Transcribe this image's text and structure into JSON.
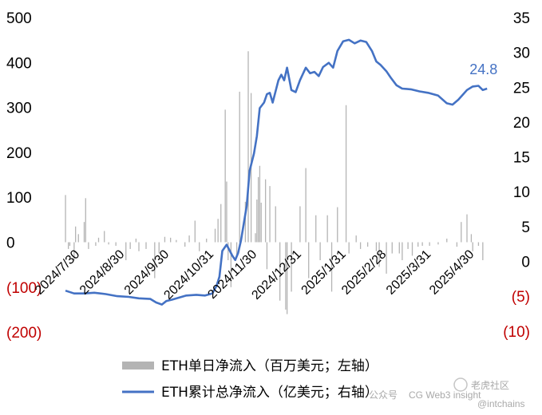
{
  "colors": {
    "bar": "#b4b4b4",
    "line": "#4472c4",
    "negative_tick": "#c00000",
    "callout": "#4472c4"
  },
  "chart_data": {
    "type": "bar+line",
    "y_left": {
      "ticks": [
        "500",
        "400",
        "300",
        "200",
        "100",
        "0",
        "(100)",
        "(200)"
      ],
      "range": [
        -200,
        500
      ]
    },
    "y_right": {
      "ticks": [
        "35",
        "30",
        "25",
        "20",
        "15",
        "10",
        "5",
        "0",
        "(5)",
        "(10)"
      ],
      "range": [
        -10,
        35
      ]
    },
    "x_labels": [
      "2024/7/30",
      "2024/8/30",
      "2024/9/30",
      "2024/10/31",
      "2024/11/30",
      "2024/12/31",
      "2025/1/31",
      "2025/2/28",
      "2025/3/31",
      "2025/4/30"
    ],
    "x_range": [
      "2024/7/23",
      "2025/5/13"
    ],
    "bars": [
      {
        "date": "2024/7/23",
        "value": 105
      },
      {
        "date": "2024/7/25",
        "value": -15
      },
      {
        "date": "2024/7/26",
        "value": -8
      },
      {
        "date": "2024/7/29",
        "value": -40
      },
      {
        "date": "2024/7/30",
        "value": 35
      },
      {
        "date": "2024/8/1",
        "value": 18
      },
      {
        "date": "2024/8/5",
        "value": 45
      },
      {
        "date": "2024/8/6",
        "value": 98
      },
      {
        "date": "2024/8/8",
        "value": -15
      },
      {
        "date": "2024/8/13",
        "value": -8
      },
      {
        "date": "2024/8/15",
        "value": 10
      },
      {
        "date": "2024/8/19",
        "value": 25
      },
      {
        "date": "2024/8/22",
        "value": -5
      },
      {
        "date": "2024/8/27",
        "value": -8
      },
      {
        "date": "2024/9/3",
        "value": -40
      },
      {
        "date": "2024/9/6",
        "value": -15
      },
      {
        "date": "2024/9/10",
        "value": 8
      },
      {
        "date": "2024/9/12",
        "value": -20
      },
      {
        "date": "2024/9/17",
        "value": -15
      },
      {
        "date": "2024/9/23",
        "value": -80
      },
      {
        "date": "2024/9/26",
        "value": -25
      },
      {
        "date": "2024/9/30",
        "value": 12
      },
      {
        "date": "2024/10/4",
        "value": 10
      },
      {
        "date": "2024/10/8",
        "value": 5
      },
      {
        "date": "2024/10/14",
        "value": -10
      },
      {
        "date": "2024/10/17",
        "value": 15
      },
      {
        "date": "2024/10/21",
        "value": 48
      },
      {
        "date": "2024/10/24",
        "value": -20
      },
      {
        "date": "2024/10/29",
        "value": 8
      },
      {
        "date": "2024/11/4",
        "value": 30
      },
      {
        "date": "2024/11/6",
        "value": 52
      },
      {
        "date": "2024/11/8",
        "value": 85
      },
      {
        "date": "2024/11/11",
        "value": 295
      },
      {
        "date": "2024/11/12",
        "value": 135
      },
      {
        "date": "2024/11/13",
        "value": -40
      },
      {
        "date": "2024/11/15",
        "value": -100
      },
      {
        "date": "2024/11/19",
        "value": -30
      },
      {
        "date": "2024/11/21",
        "value": 335
      },
      {
        "date": "2024/11/25",
        "value": 90
      },
      {
        "date": "2024/11/27",
        "value": 425
      },
      {
        "date": "2024/11/29",
        "value": 332
      },
      {
        "date": "2024/12/2",
        "value": 20
      },
      {
        "date": "2024/12/3",
        "value": 95
      },
      {
        "date": "2024/12/4",
        "value": 145
      },
      {
        "date": "2024/12/5",
        "value": 170
      },
      {
        "date": "2024/12/6",
        "value": 88
      },
      {
        "date": "2024/12/9",
        "value": 140
      },
      {
        "date": "2024/12/10",
        "value": -60
      },
      {
        "date": "2024/12/12",
        "value": 125
      },
      {
        "date": "2024/12/16",
        "value": 80
      },
      {
        "date": "2024/12/19",
        "value": -130
      },
      {
        "date": "2024/12/23",
        "value": -150
      },
      {
        "date": "2024/12/24",
        "value": -160
      },
      {
        "date": "2024/12/27",
        "value": -110
      },
      {
        "date": "2025/1/2",
        "value": 80
      },
      {
        "date": "2025/1/6",
        "value": 165
      },
      {
        "date": "2025/1/8",
        "value": -80
      },
      {
        "date": "2025/1/13",
        "value": 60
      },
      {
        "date": "2025/1/16",
        "value": -40
      },
      {
        "date": "2025/1/21",
        "value": 60
      },
      {
        "date": "2025/1/24",
        "value": -110
      },
      {
        "date": "2025/1/28",
        "value": 78
      },
      {
        "date": "2025/2/3",
        "value": 305
      },
      {
        "date": "2025/2/5",
        "value": -25
      },
      {
        "date": "2025/2/10",
        "value": 15
      },
      {
        "date": "2025/2/13",
        "value": -15
      },
      {
        "date": "2025/2/18",
        "value": -10
      },
      {
        "date": "2025/2/24",
        "value": -20
      },
      {
        "date": "2025/2/26",
        "value": -55
      },
      {
        "date": "2025/3/3",
        "value": -70
      },
      {
        "date": "2025/3/7",
        "value": -25
      },
      {
        "date": "2025/3/12",
        "value": -25
      },
      {
        "date": "2025/3/14",
        "value": -40
      },
      {
        "date": "2025/3/18",
        "value": -15
      },
      {
        "date": "2025/3/21",
        "value": -30
      },
      {
        "date": "2025/3/25",
        "value": -10
      },
      {
        "date": "2025/3/28",
        "value": -8
      },
      {
        "date": "2025/4/2",
        "value": -8
      },
      {
        "date": "2025/4/8",
        "value": -5
      },
      {
        "date": "2025/4/14",
        "value": 8
      },
      {
        "date": "2025/4/21",
        "value": -10
      },
      {
        "date": "2025/4/24",
        "value": 45
      },
      {
        "date": "2025/4/28",
        "value": 62
      },
      {
        "date": "2025/5/1",
        "value": 18
      },
      {
        "date": "2025/5/2",
        "value": -20
      },
      {
        "date": "2025/5/6",
        "value": -8
      },
      {
        "date": "2025/5/9",
        "value": -40
      }
    ],
    "cumulative": [
      {
        "date": "2024/7/23",
        "value": -4.2
      },
      {
        "date": "2024/7/29",
        "value": -4.6
      },
      {
        "date": "2024/8/5",
        "value": -4.6
      },
      {
        "date": "2024/8/12",
        "value": -4.5
      },
      {
        "date": "2024/8/20",
        "value": -4.7
      },
      {
        "date": "2024/8/28",
        "value": -5.0
      },
      {
        "date": "2024/9/5",
        "value": -5.1
      },
      {
        "date": "2024/9/12",
        "value": -5.3
      },
      {
        "date": "2024/9/20",
        "value": -5.4
      },
      {
        "date": "2024/9/24",
        "value": -5.9
      },
      {
        "date": "2024/9/28",
        "value": -6.2
      },
      {
        "date": "2024/10/1",
        "value": -5.7
      },
      {
        "date": "2024/10/5",
        "value": -5.5
      },
      {
        "date": "2024/10/10",
        "value": -5.2
      },
      {
        "date": "2024/10/15",
        "value": -4.9
      },
      {
        "date": "2024/10/22",
        "value": -4.8
      },
      {
        "date": "2024/10/28",
        "value": -4.9
      },
      {
        "date": "2024/11/2",
        "value": -4.6
      },
      {
        "date": "2024/11/5",
        "value": -3.5
      },
      {
        "date": "2024/11/7",
        "value": -2.2
      },
      {
        "date": "2024/11/9",
        "value": 1.5
      },
      {
        "date": "2024/11/12",
        "value": 2.4
      },
      {
        "date": "2024/11/14",
        "value": 1.6
      },
      {
        "date": "2024/11/16",
        "value": 0.8
      },
      {
        "date": "2024/11/18",
        "value": 0.2
      },
      {
        "date": "2024/11/20",
        "value": 1.2
      },
      {
        "date": "2024/11/22",
        "value": 3.0
      },
      {
        "date": "2024/11/24",
        "value": 5.5
      },
      {
        "date": "2024/11/26",
        "value": 8.0
      },
      {
        "date": "2024/11/28",
        "value": 13.0
      },
      {
        "date": "2024/12/1",
        "value": 15.5
      },
      {
        "date": "2024/12/3",
        "value": 18.0
      },
      {
        "date": "2024/12/5",
        "value": 22.0
      },
      {
        "date": "2024/12/8",
        "value": 22.8
      },
      {
        "date": "2024/12/10",
        "value": 24.0
      },
      {
        "date": "2024/12/12",
        "value": 24.2
      },
      {
        "date": "2024/12/14",
        "value": 22.8
      },
      {
        "date": "2024/12/18",
        "value": 26.0
      },
      {
        "date": "2024/12/20",
        "value": 26.8
      },
      {
        "date": "2024/12/22",
        "value": 26.0
      },
      {
        "date": "2024/12/24",
        "value": 27.8
      },
      {
        "date": "2024/12/27",
        "value": 24.6
      },
      {
        "date": "2024/12/30",
        "value": 24.3
      },
      {
        "date": "2025/1/2",
        "value": 26.0
      },
      {
        "date": "2025/1/6",
        "value": 27.8
      },
      {
        "date": "2025/1/9",
        "value": 27.0
      },
      {
        "date": "2025/1/12",
        "value": 27.2
      },
      {
        "date": "2025/1/15",
        "value": 26.6
      },
      {
        "date": "2025/1/18",
        "value": 27.9
      },
      {
        "date": "2025/1/22",
        "value": 28.5
      },
      {
        "date": "2025/1/25",
        "value": 27.8
      },
      {
        "date": "2025/1/28",
        "value": 30.2
      },
      {
        "date": "2025/2/1",
        "value": 31.6
      },
      {
        "date": "2025/2/5",
        "value": 31.8
      },
      {
        "date": "2025/2/9",
        "value": 31.3
      },
      {
        "date": "2025/2/13",
        "value": 31.7
      },
      {
        "date": "2025/2/17",
        "value": 31.5
      },
      {
        "date": "2025/2/21",
        "value": 30.2
      },
      {
        "date": "2025/2/24",
        "value": 28.7
      },
      {
        "date": "2025/2/27",
        "value": 28.2
      },
      {
        "date": "2025/3/3",
        "value": 27.3
      },
      {
        "date": "2025/3/6",
        "value": 26.4
      },
      {
        "date": "2025/3/10",
        "value": 25.3
      },
      {
        "date": "2025/3/14",
        "value": 24.8
      },
      {
        "date": "2025/3/20",
        "value": 24.7
      },
      {
        "date": "2025/3/26",
        "value": 24.4
      },
      {
        "date": "2025/4/1",
        "value": 24.2
      },
      {
        "date": "2025/4/8",
        "value": 23.8
      },
      {
        "date": "2025/4/14",
        "value": 22.7
      },
      {
        "date": "2025/4/18",
        "value": 22.5
      },
      {
        "date": "2025/4/22",
        "value": 23.2
      },
      {
        "date": "2025/4/25",
        "value": 23.9
      },
      {
        "date": "2025/4/28",
        "value": 24.6
      },
      {
        "date": "2025/5/2",
        "value": 25.1
      },
      {
        "date": "2025/5/6",
        "value": 25.2
      },
      {
        "date": "2025/5/9",
        "value": 24.6
      },
      {
        "date": "2025/5/12",
        "value": 24.8
      }
    ],
    "callout": {
      "text": "24.8",
      "date": "2025/5/12",
      "value": 24.8
    },
    "legend": [
      {
        "type": "bar",
        "label": "ETH单日净流入（百万美元；左轴）"
      },
      {
        "type": "line",
        "label": "ETH累计总净流入（亿美元；右轴）"
      }
    ],
    "grid": false
  },
  "watermark": {
    "text_1": "公众号",
    "text_2": "CG Web3 insight",
    "text_3": "老虎社区",
    "text_4": "@intchains"
  }
}
